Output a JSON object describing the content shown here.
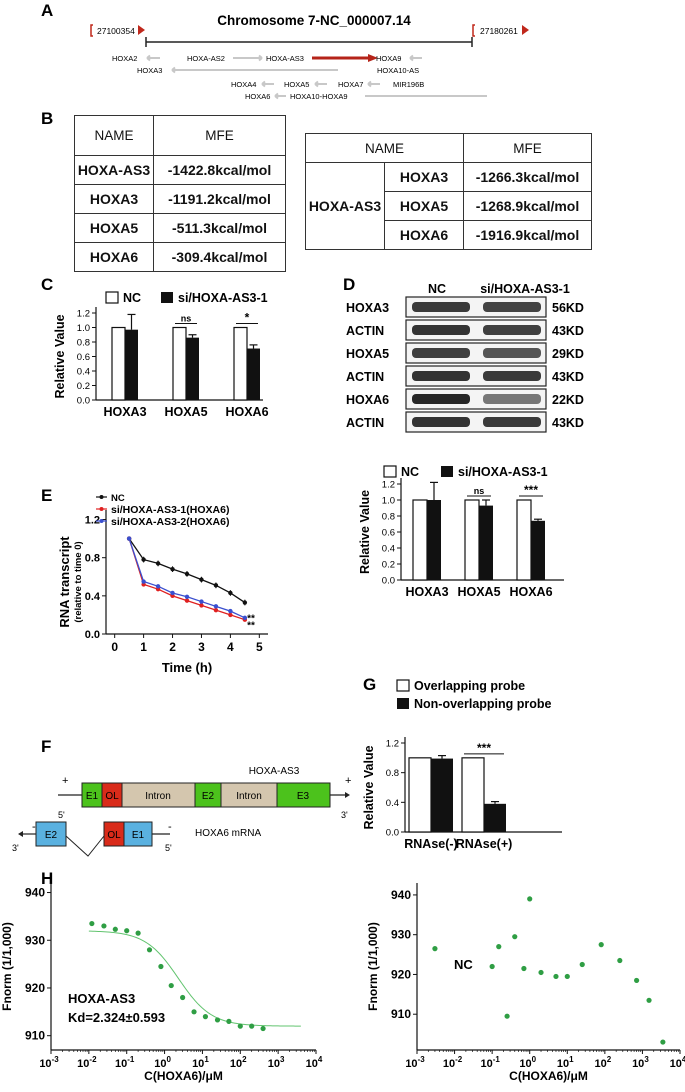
{
  "panel_labels": {
    "a": "A",
    "b": "B",
    "c": "C",
    "d": "D",
    "e": "E",
    "f": "F",
    "g": "G",
    "h": "H"
  },
  "panel_a": {
    "title": "Chromosome 7-NC_000007.14",
    "start": "27100354",
    "end": "27180261",
    "genes": {
      "hoxa2": "HOXA2",
      "hoxa_as2": "HOXA-AS2",
      "hoxa_as3": "HOXA-AS3",
      "hoxa9": "HOXA9",
      "hoxa3": "HOXA3",
      "hoxa10_as": "HOXA10-AS",
      "hoxa4": "HOXA4",
      "hoxa5": "HOXA5",
      "hoxa7": "HOXA7",
      "mir196b": "MIR196B",
      "hoxa6": "HOXA6",
      "hoxa10_hoxa9": "HOXA10-HOXA9"
    },
    "colors": {
      "highlight": "#b52419",
      "gene": "#c8c8c8"
    }
  },
  "panel_b": {
    "left_table": {
      "headers": [
        "NAME",
        "MFE"
      ],
      "rows": [
        [
          "HOXA-AS3",
          "-1422.8kcal/mol"
        ],
        [
          "HOXA3",
          "-1191.2kcal/mol"
        ],
        [
          "HOXA5",
          "-511.3kcal/mol"
        ],
        [
          "HOXA6",
          "-309.4kcal/mol"
        ]
      ]
    },
    "right_table": {
      "headers": [
        "NAME",
        "MFE"
      ],
      "group": "HOXA-AS3",
      "rows": [
        [
          "HOXA3",
          "-1266.3kcal/mol"
        ],
        [
          "HOXA5",
          "-1268.9kcal/mol"
        ],
        [
          "HOXA6",
          "-1916.9kcal/mol"
        ]
      ]
    }
  },
  "panel_d": {
    "blot_labels": [
      "HOXA3",
      "ACTIN",
      "HOXA5",
      "ACTIN",
      "HOXA6",
      "ACTIN"
    ],
    "blot_sizes": [
      "56KD",
      "43KD",
      "29KD",
      "43KD",
      "22KD",
      "43KD"
    ],
    "lane_labels": [
      "NC",
      "si/HOXA-AS3-1"
    ]
  },
  "panel_f": {
    "lnc_title": "HOXA-AS3",
    "lnc_exons": {
      "e1": "E1",
      "ol": "OL",
      "intron1": "Intron",
      "e2": "E2",
      "intron2": "Intron",
      "e3": "E3"
    },
    "mrna_title": "HOXA6 mRNA",
    "mrna_exons": {
      "e2": "E2",
      "ol": "OL",
      "e1": "E1"
    },
    "ends": {
      "five": "5'",
      "three": "3'",
      "plus": "+",
      "minus": "-"
    },
    "colors": {
      "exon": "#4cc21c",
      "ol": "#d92b1a",
      "intron": "#d4c6ae",
      "mrna": "#5ab1e0"
    }
  },
  "chart_data": [
    {
      "id": "C",
      "type": "bar",
      "legend": [
        "NC",
        "si/HOXA-AS3-1"
      ],
      "categories": [
        "HOXA3",
        "HOXA5",
        "HOXA6"
      ],
      "series": [
        {
          "name": "NC",
          "values": [
            1.0,
            1.0,
            1.0
          ],
          "errors": [
            0,
            0,
            0
          ]
        },
        {
          "name": "si/HOXA-AS3-1",
          "values": [
            0.97,
            0.86,
            0.71
          ],
          "errors": [
            0.21,
            0.04,
            0.05
          ]
        }
      ],
      "significance": [
        "",
        "ns",
        "*"
      ],
      "ylabel": "Relative Value",
      "yticks": [
        "0.0",
        "0.2",
        "0.4",
        "0.6",
        "0.8",
        "1.0",
        "1.2"
      ],
      "ylim": [
        0,
        1.2
      ]
    },
    {
      "id": "D",
      "type": "bar",
      "legend": [
        "NC",
        "si/HOXA-AS3-1"
      ],
      "categories": [
        "HOXA3",
        "HOXA5",
        "HOXA6"
      ],
      "series": [
        {
          "name": "NC",
          "values": [
            1.0,
            1.0,
            1.0
          ],
          "errors": [
            0,
            0,
            0
          ]
        },
        {
          "name": "si/HOXA-AS3-1",
          "values": [
            1.0,
            0.93,
            0.74
          ],
          "errors": [
            0.22,
            0.07,
            0.02
          ]
        }
      ],
      "significance": [
        "",
        "ns",
        "***"
      ],
      "ylabel": "Relative Value",
      "yticks": [
        "0.0",
        "0.2",
        "0.4",
        "0.6",
        "0.8",
        "1.0",
        "1.2"
      ],
      "ylim": [
        0,
        1.2
      ]
    },
    {
      "id": "E",
      "type": "line",
      "x": [
        0,
        1,
        2,
        3,
        4,
        5
      ],
      "series": [
        {
          "name": "NC",
          "color": "#111111",
          "x": [
            0.5,
            1,
            1.5,
            2,
            2.5,
            3,
            3.5,
            4,
            4.5
          ],
          "values": [
            1.0,
            0.78,
            0.74,
            0.68,
            0.63,
            0.57,
            0.51,
            0.43,
            0.33
          ]
        },
        {
          "name": "si/HOXA-AS3-1(HOXA6)",
          "color": "#e02020",
          "x": [
            0.5,
            1,
            1.5,
            2,
            2.5,
            3,
            3.5,
            4,
            4.5
          ],
          "values": [
            1.0,
            0.52,
            0.47,
            0.4,
            0.35,
            0.3,
            0.25,
            0.2,
            0.15
          ]
        },
        {
          "name": "si/HOXA-AS3-2(HOXA6)",
          "color": "#3a4fcf",
          "x": [
            0.5,
            1,
            1.5,
            2,
            2.5,
            3,
            3.5,
            4,
            4.5
          ],
          "values": [
            1.0,
            0.55,
            0.5,
            0.43,
            0.39,
            0.34,
            0.29,
            0.24,
            0.17
          ]
        }
      ],
      "xlabel": "Time (h)",
      "ylabel": "RNA transcript",
      "ylabel2": "(relative to time 0)",
      "xticks": [
        "0",
        "1",
        "2",
        "3",
        "4",
        "5"
      ],
      "yticks": [
        "0.0",
        "0.4",
        "0.8",
        "1.2"
      ],
      "xlim": [
        -0.3,
        5.3
      ],
      "ylim": [
        0,
        1.3
      ],
      "significance": "**"
    },
    {
      "id": "G",
      "type": "bar",
      "legend": [
        "Overlapping probe",
        "Non-overlapping probe"
      ],
      "categories": [
        "RNAse(-)",
        "RNAse(+)"
      ],
      "series": [
        {
          "name": "Overlapping probe",
          "values": [
            1.0,
            1.0
          ],
          "errors": [
            0,
            0
          ]
        },
        {
          "name": "Non-overlapping probe",
          "values": [
            0.99,
            0.38
          ],
          "errors": [
            0.04,
            0.03
          ]
        }
      ],
      "significance": [
        "",
        "***"
      ],
      "ylabel": "Relative Value",
      "yticks": [
        "0.0",
        "0.4",
        "0.8",
        "1.2"
      ],
      "ylim": [
        0,
        1.2
      ]
    },
    {
      "id": "H-left",
      "type": "scatter",
      "points_x": [
        0.012,
        0.025,
        0.05,
        0.1,
        0.2,
        0.4,
        0.8,
        1.5,
        3,
        6,
        12,
        25,
        50,
        100,
        200,
        400
      ],
      "points_y": [
        933.5,
        933,
        932.3,
        932,
        931.5,
        928,
        924.5,
        920.5,
        918,
        915,
        914,
        913.3,
        913,
        912,
        912,
        911.5
      ],
      "fit": true,
      "annotation": [
        "HOXA-AS3",
        "Kd=2.324±0.593"
      ],
      "xlabel": "C(HOXA6)/μM",
      "ylabel": "Fnorm (1/1,000)",
      "yticks": [
        "910",
        "920",
        "930",
        "940"
      ],
      "ylim": [
        907,
        942
      ],
      "xticks_exp": [
        "-3",
        "-2",
        "-1",
        "0",
        "1",
        "2",
        "3",
        "4"
      ],
      "color": "#2f9e44"
    },
    {
      "id": "H-right",
      "type": "scatter",
      "points_x": [
        0.003,
        0.1,
        0.15,
        0.25,
        0.4,
        0.7,
        1.0,
        2,
        5,
        10,
        25,
        80,
        250,
        700,
        1500,
        3500
      ],
      "points_y": [
        926.5,
        922,
        927,
        909.5,
        929.5,
        921.5,
        939,
        920.5,
        919.5,
        919.5,
        922.5,
        927.5,
        923.5,
        918.5,
        913.5,
        903
      ],
      "fit": false,
      "annotation": [
        "NC"
      ],
      "xlabel": "C(HOXA6)/μM",
      "ylabel": "Fnorm (1/1,000)",
      "yticks": [
        "910",
        "920",
        "930",
        "940"
      ],
      "ylim": [
        901,
        943
      ],
      "xticks_exp": [
        "-3",
        "-2",
        "-1",
        "0",
        "1",
        "2",
        "3",
        "4"
      ],
      "color": "#2f9e44"
    }
  ]
}
